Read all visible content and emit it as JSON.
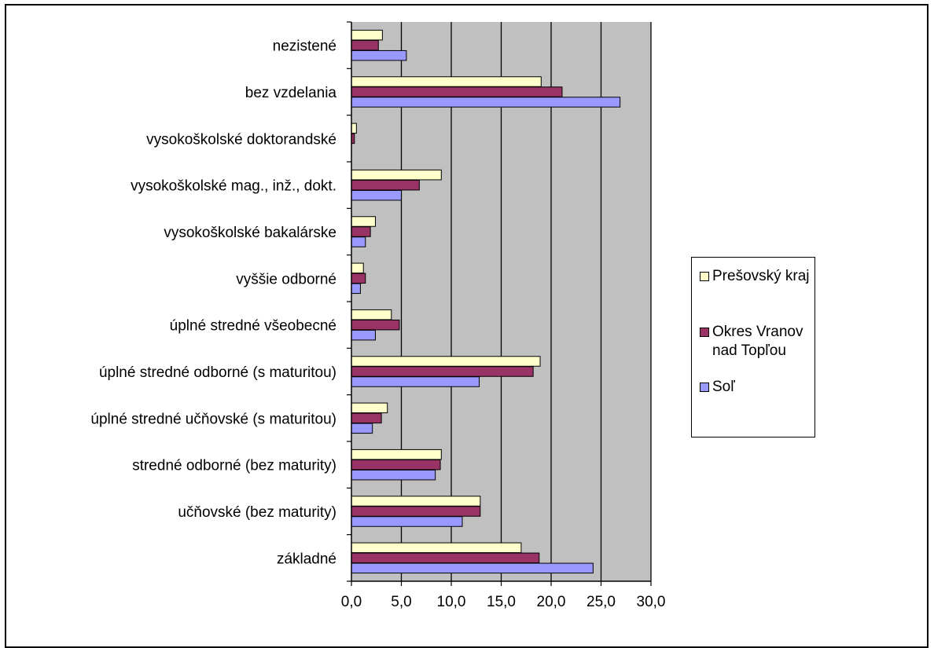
{
  "chart_data": {
    "type": "bar",
    "orientation": "horizontal",
    "categories": [
      "nezistené",
      "bez vzdelania",
      "vysokoškolské doktorandské",
      "vysokoškolské mag., inž., dokt.",
      "vysokoškolské bakalárske",
      "vyššie odborné",
      "úplné stredné všeobecné",
      "úplné stredné odborné (s maturitou)",
      "úplné stredné učňovské (s maturitou)",
      "stredné odborné (bez maturity)",
      "učňovské (bez maturity)",
      "základné"
    ],
    "series": [
      {
        "name": "Prešovský kraj",
        "color": "#ffffcc",
        "values": [
          3.1,
          19.0,
          0.5,
          9.0,
          2.4,
          1.2,
          4.0,
          18.9,
          3.6,
          9.0,
          12.9,
          17.0
        ]
      },
      {
        "name": "Okres Vranov nad Topľou",
        "color": "#993366",
        "values": [
          2.7,
          21.1,
          0.3,
          6.8,
          1.9,
          1.4,
          4.8,
          18.2,
          3.0,
          8.9,
          12.9,
          18.8
        ]
      },
      {
        "name": "Soľ",
        "color": "#9999ff",
        "values": [
          5.5,
          26.9,
          0.0,
          5.0,
          1.4,
          0.9,
          2.4,
          12.8,
          2.1,
          8.4,
          11.1,
          24.2
        ]
      }
    ],
    "xlim": [
      0,
      30
    ],
    "xticks": [
      "0,0",
      "5,0",
      "10,0",
      "15,0",
      "20,0",
      "25,0",
      "30,0"
    ],
    "grid": true,
    "plot_background": "#c0c0c0",
    "legend_position": "right"
  }
}
